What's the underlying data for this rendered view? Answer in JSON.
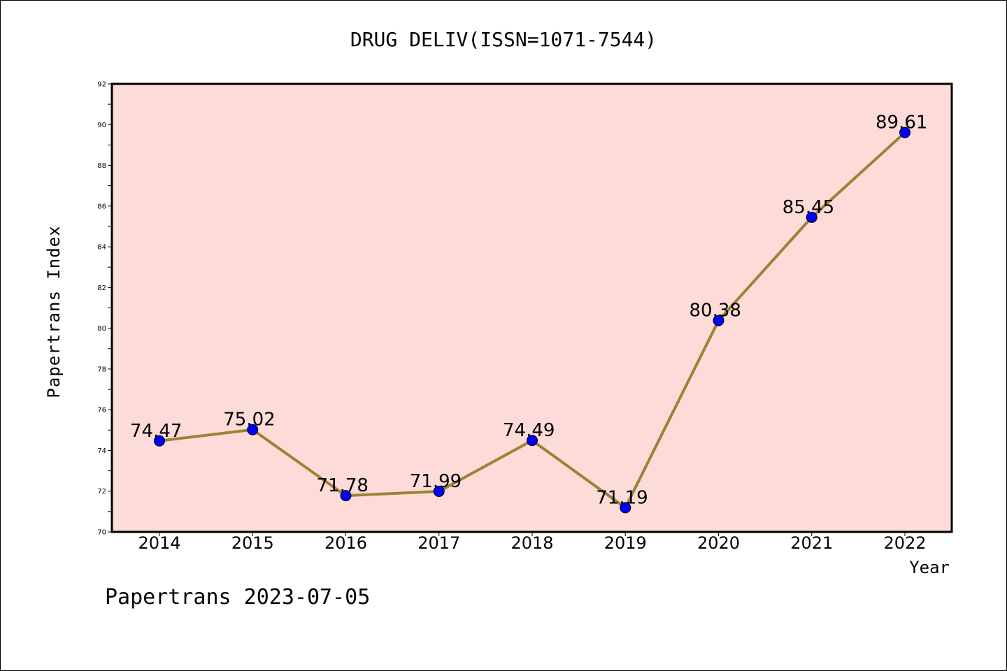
{
  "chart_data": {
    "type": "line",
    "title": "DRUG DELIV(ISSN=1071-7544)",
    "xlabel": "Year",
    "ylabel": "Papertrans Index",
    "x": [
      "2014",
      "2015",
      "2016",
      "2017",
      "2018",
      "2019",
      "2020",
      "2021",
      "2022"
    ],
    "series": [
      {
        "values": [
          74.47,
          75.02,
          71.78,
          71.99,
          74.49,
          71.19,
          80.38,
          85.45,
          89.61
        ],
        "labels": [
          "74.47",
          "75.02",
          "71.78",
          "71.99",
          "74.49",
          "71.19",
          "80.38",
          "85.45",
          "89.61"
        ]
      }
    ],
    "ylim": [
      70,
      92
    ],
    "yticks": [
      "70",
      "72",
      "74",
      "76",
      "78",
      "80",
      "82",
      "84",
      "86",
      "88",
      "90",
      "92"
    ],
    "grid": false,
    "colors": {
      "plot_background": "#fddbd8",
      "line": "#9a8436",
      "marker": "#0000ff"
    }
  },
  "footer": "Papertrans 2023-07-05"
}
